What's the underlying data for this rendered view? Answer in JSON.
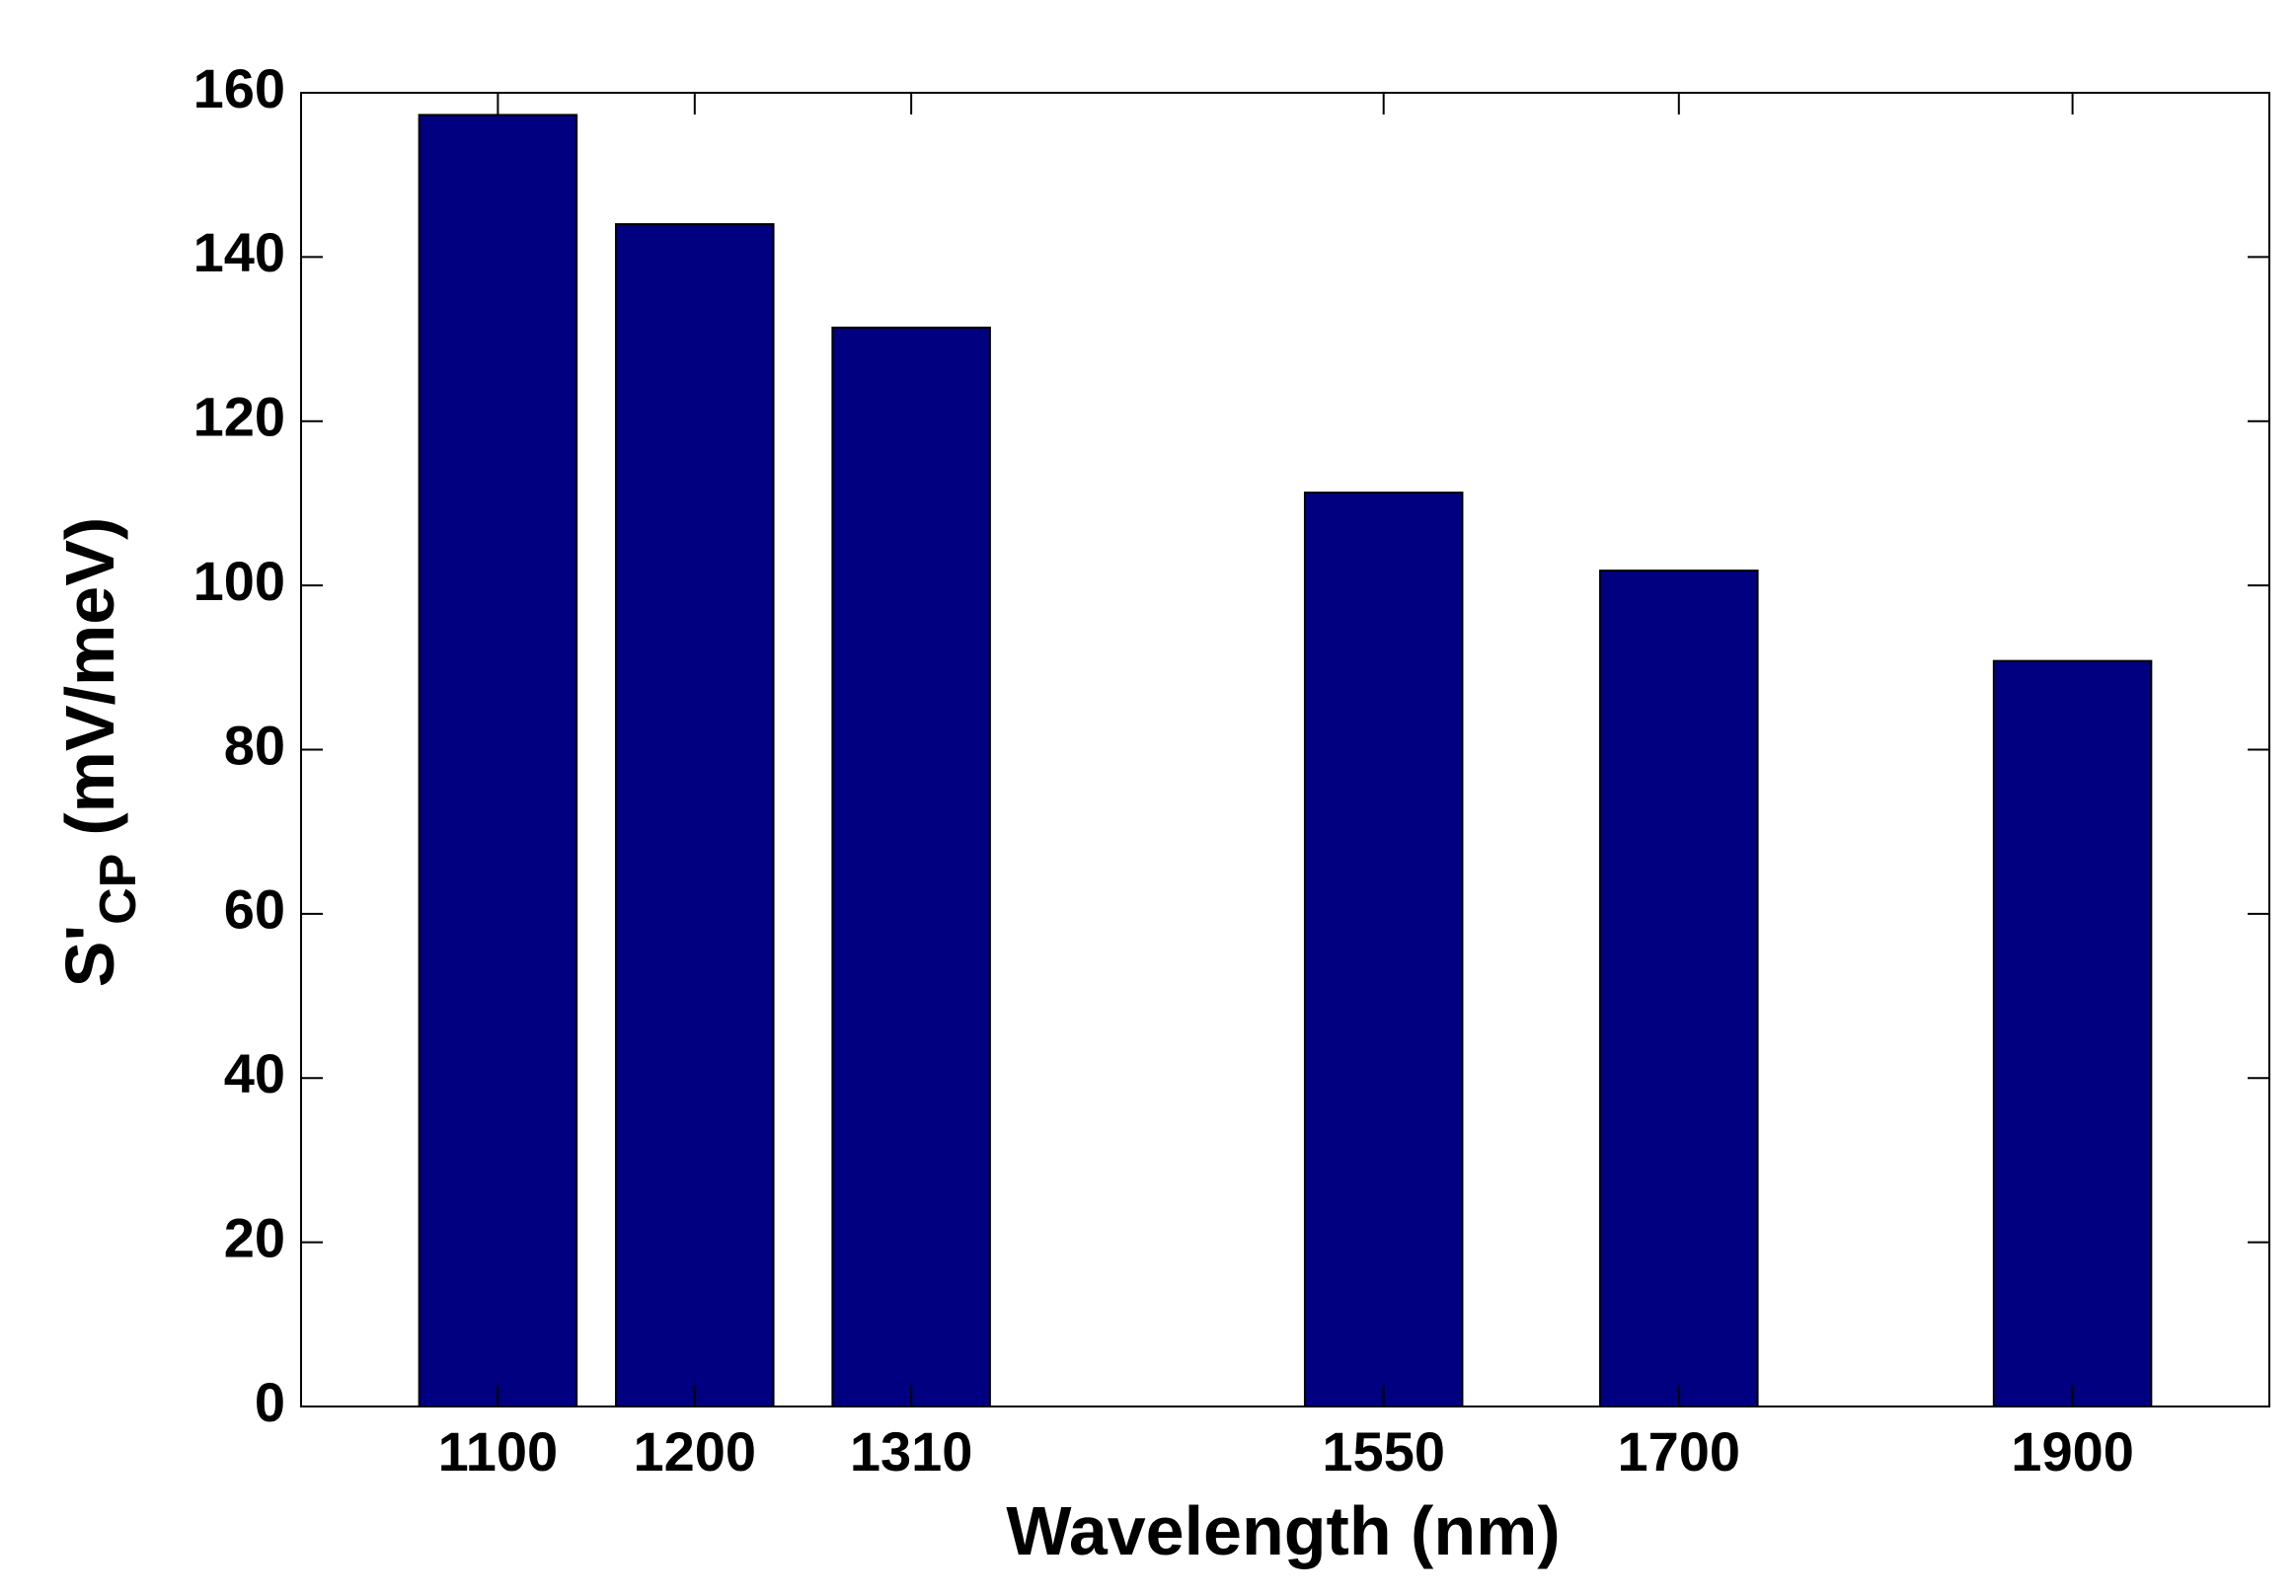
{
  "chart_data": {
    "type": "bar",
    "x_label": "Wavelength (nm)",
    "y_label": {
      "main": "S'",
      "sub": "CP",
      "rest": "(mV/meV)"
    },
    "x": [
      1100,
      1200,
      1310,
      1550,
      1700,
      1900
    ],
    "values": [
      157.3,
      144,
      131.4,
      111.3,
      101.8,
      90.8
    ],
    "color": "#000080",
    "xlim": [
      1000,
      2000
    ],
    "xticks": [
      1100,
      1200,
      1310,
      1550,
      1700,
      1900
    ],
    "ylim": [
      0,
      160
    ],
    "yticks": [
      0,
      20,
      40,
      60,
      80,
      100,
      120,
      140,
      160
    ],
    "grid": false
  }
}
